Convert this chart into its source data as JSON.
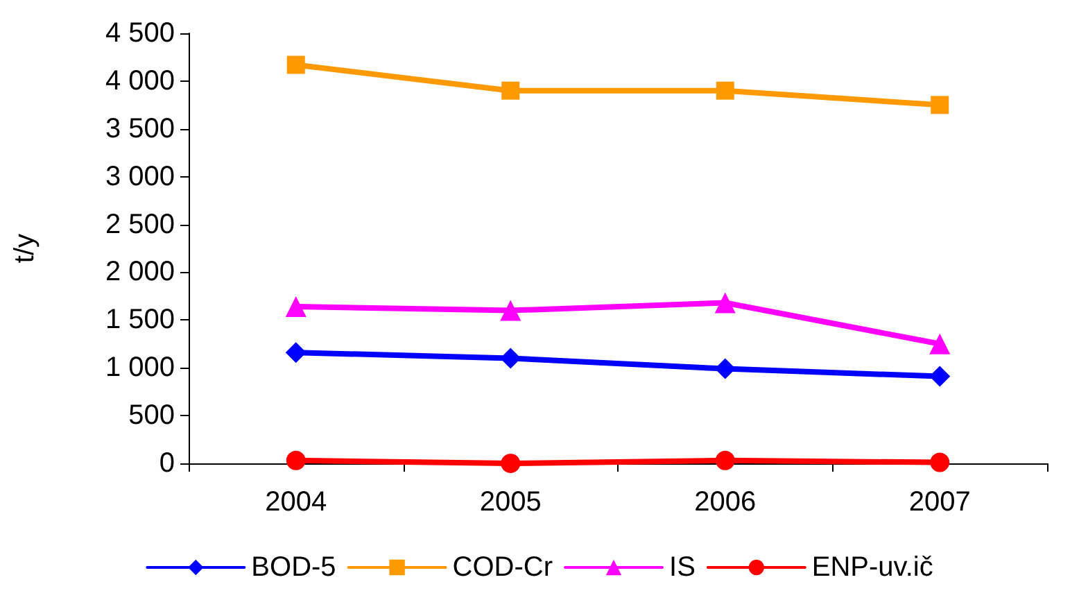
{
  "chart_data": {
    "type": "line",
    "ylabel": "t/y",
    "categories": [
      "2004",
      "2005",
      "2006",
      "2007"
    ],
    "series": [
      {
        "name": "BOD-5",
        "color": "#0000ff",
        "marker": "diamond",
        "values": [
          1160,
          1100,
          990,
          910
        ]
      },
      {
        "name": "COD-Cr",
        "color": "#ff9900",
        "marker": "square",
        "values": [
          4170,
          3900,
          3900,
          3750
        ]
      },
      {
        "name": "IS",
        "color": "#ff00ff",
        "marker": "triangle",
        "values": [
          1640,
          1600,
          1680,
          1250
        ]
      },
      {
        "name": "ENP-uv.ič",
        "color": "#ff0000",
        "marker": "circle",
        "values": [
          30,
          0,
          30,
          10
        ]
      }
    ],
    "ylim": [
      0,
      4500
    ],
    "yticks": [
      0,
      500,
      {
        "value": 1000,
        "label": "1 000"
      },
      {
        "value": 1500,
        "label": "1 500"
      },
      {
        "value": 2000,
        "label": "2 000"
      },
      {
        "value": 2500,
        "label": "2 500"
      },
      {
        "value": 3000,
        "label": "3 000"
      },
      {
        "value": 3500,
        "label": "3 500"
      },
      {
        "value": 4000,
        "label": "4 000"
      },
      {
        "value": 4500,
        "label": "4 500"
      }
    ],
    "grid": false,
    "legend": "bottom",
    "line_style": "solid"
  }
}
